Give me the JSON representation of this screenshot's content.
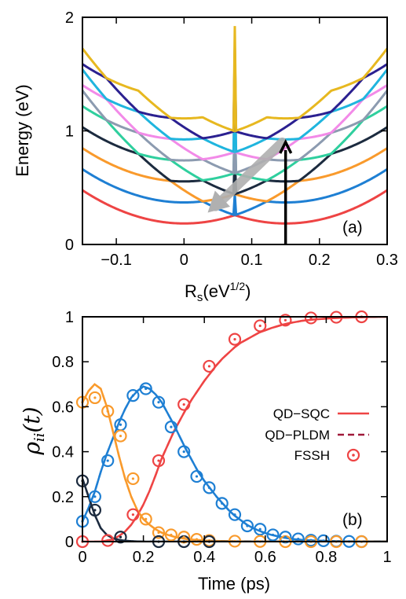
{
  "chart_data": [
    {
      "type": "line",
      "panel_label": "(a)",
      "xlabel": "R",
      "xlabel_sub": "s",
      "xlabel_unit_open": "(eV",
      "xlabel_sup": "1/2",
      "xlabel_unit_close": ")",
      "ylabel": "Energy (eV)",
      "xlim": [
        -0.15,
        0.3
      ],
      "ylim": [
        0,
        2
      ],
      "x_ticks": [
        -0.1,
        0,
        0.1,
        0.2,
        0.3
      ],
      "x_tick_labels": [
        "−0.1",
        "0",
        "0.1",
        "0.2",
        "0.3"
      ],
      "y_ticks": [
        0,
        1,
        2
      ],
      "y_tick_labels": [
        "0",
        "1",
        "2"
      ],
      "grid": false,
      "potential_model": {
        "curvature": 13.0,
        "displacement": 0.15,
        "offset_step": 0.185
      },
      "series": [
        {
          "n": 0,
          "offset": 0.185,
          "color": "#ee4444"
        },
        {
          "n": 1,
          "offset": 0.37,
          "color": "#1e7fd3"
        },
        {
          "n": 2,
          "offset": 0.555,
          "color": "#f99a2c"
        },
        {
          "n": 3,
          "offset": 0.74,
          "color": "#1c2b3f"
        },
        {
          "n": 4,
          "offset": 0.925,
          "color": "#2fcf9e"
        },
        {
          "n": 5,
          "offset": 1.11,
          "color": "#8c9bb0"
        },
        {
          "n": 6,
          "offset": 1.295,
          "color": "#f28ae8"
        },
        {
          "n": 7,
          "offset": 1.48,
          "color": "#1fb5de"
        },
        {
          "n": 8,
          "offset": 1.665,
          "color": "#2b2090"
        },
        {
          "n": 9,
          "offset": 1.85,
          "color": "#e7b820"
        }
      ],
      "annotations": {
        "excitation_arrow": {
          "x": 0.15,
          "y_from": 0.0,
          "y_to": 0.9,
          "color": "#000000"
        },
        "relaxation_arrow": {
          "x_from": 0.145,
          "y_from": 0.9,
          "x_to": 0.035,
          "y_to": 0.28,
          "color": "#b0b0b0"
        }
      }
    },
    {
      "type": "line",
      "panel_label": "(b)",
      "xlabel": "Time (ps)",
      "ylabel_base": "ρ",
      "ylabel_sub": "ii",
      "ylabel_arg": "(t)",
      "xlim": [
        0,
        1
      ],
      "ylim": [
        0,
        1
      ],
      "x_ticks": [
        0,
        0.2,
        0.4,
        0.6,
        0.8,
        1
      ],
      "x_tick_labels": [
        "0",
        "0.2",
        "0.4",
        "0.6",
        "0.8",
        "1"
      ],
      "y_ticks": [
        0,
        0.2,
        0.4,
        0.6,
        0.8,
        1
      ],
      "y_tick_labels": [
        "0",
        "0.2",
        "0.4",
        "0.6",
        "0.8",
        "1"
      ],
      "grid": false,
      "legend_position": "right",
      "legend": [
        {
          "label": "QD−SQC",
          "style": "solid",
          "color": "#ee4444"
        },
        {
          "label": "QD−PLDM",
          "style": "dashed",
          "color": "#a01a3a"
        },
        {
          "label": "FSSH",
          "style": "circle",
          "color": "#ee4444"
        }
      ],
      "x": [
        0,
        0.02,
        0.04,
        0.06,
        0.08,
        0.1,
        0.12,
        0.14,
        0.16,
        0.18,
        0.2,
        0.22,
        0.24,
        0.26,
        0.28,
        0.3,
        0.32,
        0.34,
        0.36,
        0.38,
        0.4,
        0.42,
        0.44,
        0.46,
        0.48,
        0.5,
        0.52,
        0.54,
        0.56,
        0.58,
        0.6,
        0.62,
        0.64,
        0.66,
        0.68,
        0.7,
        0.72,
        0.74,
        0.76,
        0.78,
        0.8,
        0.82,
        0.84,
        0.86,
        0.88,
        0.9,
        0.92,
        0.94,
        0.96,
        0.98,
        1.0
      ],
      "series": [
        {
          "state": 0,
          "color": "#ee4444",
          "values": [
            0,
            0,
            0,
            0,
            0.005,
            0.01,
            0.025,
            0.045,
            0.075,
            0.115,
            0.165,
            0.225,
            0.295,
            0.37,
            0.43,
            0.49,
            0.54,
            0.59,
            0.635,
            0.675,
            0.715,
            0.75,
            0.785,
            0.815,
            0.84,
            0.865,
            0.885,
            0.9,
            0.915,
            0.93,
            0.94,
            0.95,
            0.958,
            0.966,
            0.972,
            0.977,
            0.982,
            0.985,
            0.988,
            0.99,
            0.992,
            0.994,
            0.995,
            0.996,
            0.997,
            0.998,
            0.998,
            0.999,
            0.999,
            1.0,
            1.0
          ],
          "fssh_x": [
            0,
            0.083,
            0.166,
            0.25,
            0.333,
            0.416,
            0.5,
            0.583,
            0.666,
            0.75,
            0.833,
            0.916
          ],
          "fssh_y": [
            0,
            0.005,
            0.12,
            0.36,
            0.61,
            0.78,
            0.9,
            0.96,
            0.985,
            0.995,
            0.998,
            1.0
          ]
        },
        {
          "state": 1,
          "color": "#1e7fd3",
          "values": [
            0.09,
            0.15,
            0.22,
            0.31,
            0.39,
            0.46,
            0.53,
            0.59,
            0.64,
            0.67,
            0.69,
            0.68,
            0.655,
            0.62,
            0.57,
            0.52,
            0.465,
            0.41,
            0.36,
            0.31,
            0.27,
            0.235,
            0.2,
            0.17,
            0.14,
            0.115,
            0.095,
            0.075,
            0.06,
            0.048,
            0.038,
            0.03,
            0.024,
            0.018,
            0.014,
            0.01,
            0.008,
            0.006,
            0.005,
            0.004,
            0.003,
            0.002,
            0.002,
            0.001,
            0.001,
            0.001,
            0.0,
            0.0,
            0.0,
            0.0,
            0.0
          ],
          "fssh_x": [
            0,
            0.041,
            0.083,
            0.125,
            0.166,
            0.208,
            0.25,
            0.291,
            0.333,
            0.375,
            0.416,
            0.458,
            0.5,
            0.541,
            0.583,
            0.625,
            0.666,
            0.708,
            0.75,
            0.791,
            0.833,
            0.875,
            0.916
          ],
          "fssh_y": [
            0.09,
            0.2,
            0.36,
            0.52,
            0.65,
            0.68,
            0.62,
            0.51,
            0.4,
            0.29,
            0.24,
            0.17,
            0.12,
            0.07,
            0.055,
            0.03,
            0.02,
            0.012,
            0.006,
            0.004,
            0.002,
            0.001,
            0.0
          ]
        },
        {
          "state": 2,
          "color": "#f99a2c",
          "values": [
            0.62,
            0.67,
            0.7,
            0.68,
            0.6,
            0.49,
            0.38,
            0.28,
            0.2,
            0.14,
            0.1,
            0.075,
            0.055,
            0.04,
            0.03,
            0.022,
            0.016,
            0.012,
            0.009,
            0.007,
            0.005,
            0.004,
            0.003,
            0.002,
            0.002,
            0.001,
            0.001,
            0.001,
            0.0,
            0.0,
            0.0,
            0.0,
            0.0,
            0.0,
            0.0,
            0.0,
            0.0,
            0.0,
            0.0,
            0.0,
            0.0,
            0.0,
            0.0,
            0.0,
            0.0,
            0.0,
            0.0,
            0.0,
            0.0,
            0.0,
            0.0
          ],
          "fssh_x": [
            0,
            0.041,
            0.083,
            0.125,
            0.166,
            0.208,
            0.25,
            0.291,
            0.333,
            0.375,
            0.416,
            0.5,
            0.583,
            0.666,
            0.75,
            0.833,
            0.916
          ],
          "fssh_y": [
            0.62,
            0.64,
            0.58,
            0.47,
            0.28,
            0.1,
            0.04,
            0.03,
            0.02,
            0.01,
            0.005,
            0.002,
            0.001,
            0.0,
            0.0,
            0.0,
            0.0
          ]
        },
        {
          "state": 3,
          "color": "#1c2b3f",
          "values": [
            0.28,
            0.2,
            0.12,
            0.06,
            0.03,
            0.015,
            0.008,
            0.004,
            0.002,
            0.001,
            0.0,
            0.0,
            0.0,
            0.0,
            0.0,
            0.0,
            0.0,
            0.0,
            0.0,
            0.0,
            0.0,
            0.0,
            0.0,
            0.0,
            0.0,
            0.0,
            0.0,
            0.0,
            0.0,
            0.0,
            0.0,
            0.0,
            0.0,
            0.0,
            0.0,
            0.0,
            0.0,
            0.0,
            0.0,
            0.0,
            0.0,
            0.0,
            0.0,
            0.0,
            0.0,
            0.0,
            0.0,
            0.0,
            0.0,
            0.0,
            0.0
          ],
          "fssh_x": [
            0,
            0.041,
            0.125,
            0.25,
            0.333,
            0.416
          ],
          "fssh_y": [
            0.27,
            0.14,
            0.02,
            0.0,
            0.0,
            0.0
          ]
        }
      ]
    }
  ]
}
